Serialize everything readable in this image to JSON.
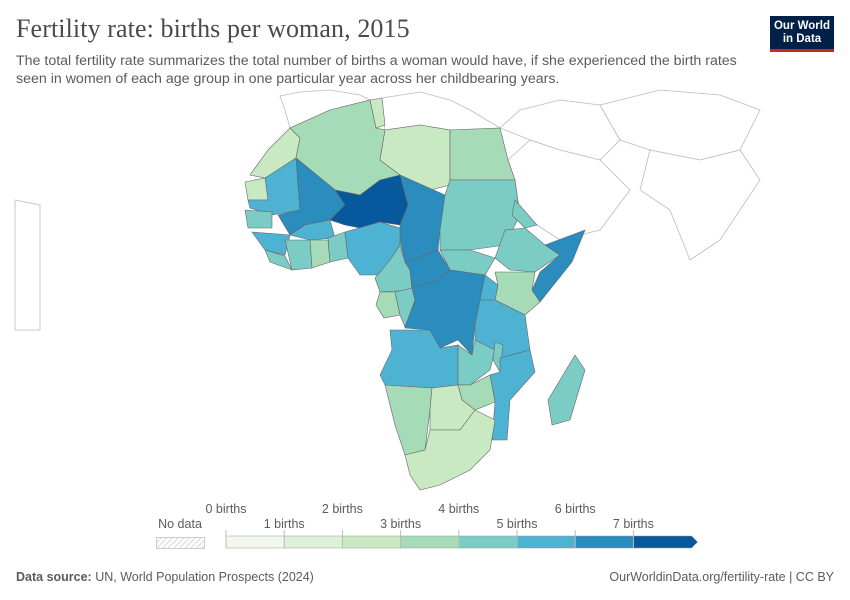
{
  "header": {
    "title": "Fertility rate: births per woman, 2015",
    "subtitle": "The total fertility rate summarizes the total number of births a woman would have, if she experienced the birth rates seen in women of each age group in one particular year across her childbearing years.",
    "logo_text": "Our World in Data"
  },
  "legend": {
    "no_data_label": "No data",
    "bins": [
      {
        "label": "0 births",
        "color": "#f2f9ec"
      },
      {
        "label": "1 births",
        "color": "#ddf1d8"
      },
      {
        "label": "2 births",
        "color": "#c8e9c2"
      },
      {
        "label": "3 births",
        "color": "#a6dbb8"
      },
      {
        "label": "4 births",
        "color": "#7bccc4"
      },
      {
        "label": "5 births",
        "color": "#4eb3d3"
      },
      {
        "label": "6 births",
        "color": "#2b8cbe"
      },
      {
        "label": "7 births",
        "color": "#08589e"
      }
    ]
  },
  "map_data": {
    "year": 2015,
    "unit": "births per woman",
    "fertility_by_region": {
      "morocco": 2.4,
      "western-sahara": 2.3,
      "algeria": 3.0,
      "tunisia": 2.2,
      "libya": 2.4,
      "egypt": 3.3,
      "mauritania": 5.0,
      "mali": 6.2,
      "niger": 7.3,
      "chad": 6.6,
      "sudan": 4.6,
      "south-sudan": 4.8,
      "eritrea": 4.2,
      "ethiopia": 4.4,
      "somalia": 6.9,
      "kenya": 3.7,
      "senegal": 4.8,
      "guinea": 5.0,
      "sierra-leone-liberia": 4.5,
      "cote-divoire": 4.8,
      "burkina-faso": 5.3,
      "ghana": 3.9,
      "togo-benin": 4.9,
      "nigeria": 5.6,
      "cameroon": 4.7,
      "central-african-republic": 6.0,
      "gabon": 3.9,
      "congo": 4.4,
      "dr-congo": 6.3,
      "uganda": 5.2,
      "tanzania": 5.0,
      "angola": 5.6,
      "zambia": 4.7,
      "malawi": 4.3,
      "mozambique": 5.0,
      "zimbabwe": 3.9,
      "namibia": 3.5,
      "botswana": 2.9,
      "south-africa": 2.5,
      "madagascar": 4.3
    }
  },
  "footer": {
    "source_label": "Data source:",
    "source": "UN, World Population Prospects (2024)",
    "url_license": "OurWorldinData.org/fertility-rate | CC BY"
  }
}
